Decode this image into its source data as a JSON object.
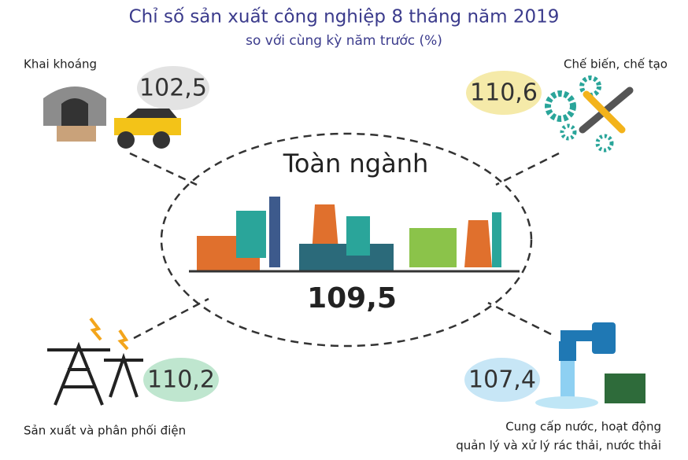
{
  "title": "Chỉ số sản xuất công nghiệp 8 tháng năm 2019",
  "subtitle": "so với cùng kỳ năm trước (%)",
  "center": {
    "label": "Toàn ngành",
    "value": "109,5"
  },
  "sectors": [
    {
      "label": [
        "Khai khoáng"
      ],
      "value": "102,5"
    },
    {
      "label": [
        "Chế biến, chế tạo"
      ],
      "value": "110,6"
    },
    {
      "label": [
        "Sản xuất và phân phối điện"
      ],
      "value": "110,2"
    },
    {
      "label": [
        "Cung cấp nước, hoạt động",
        "quản lý và xử lý rác thải, nước thải"
      ],
      "value": "107,4"
    }
  ]
}
